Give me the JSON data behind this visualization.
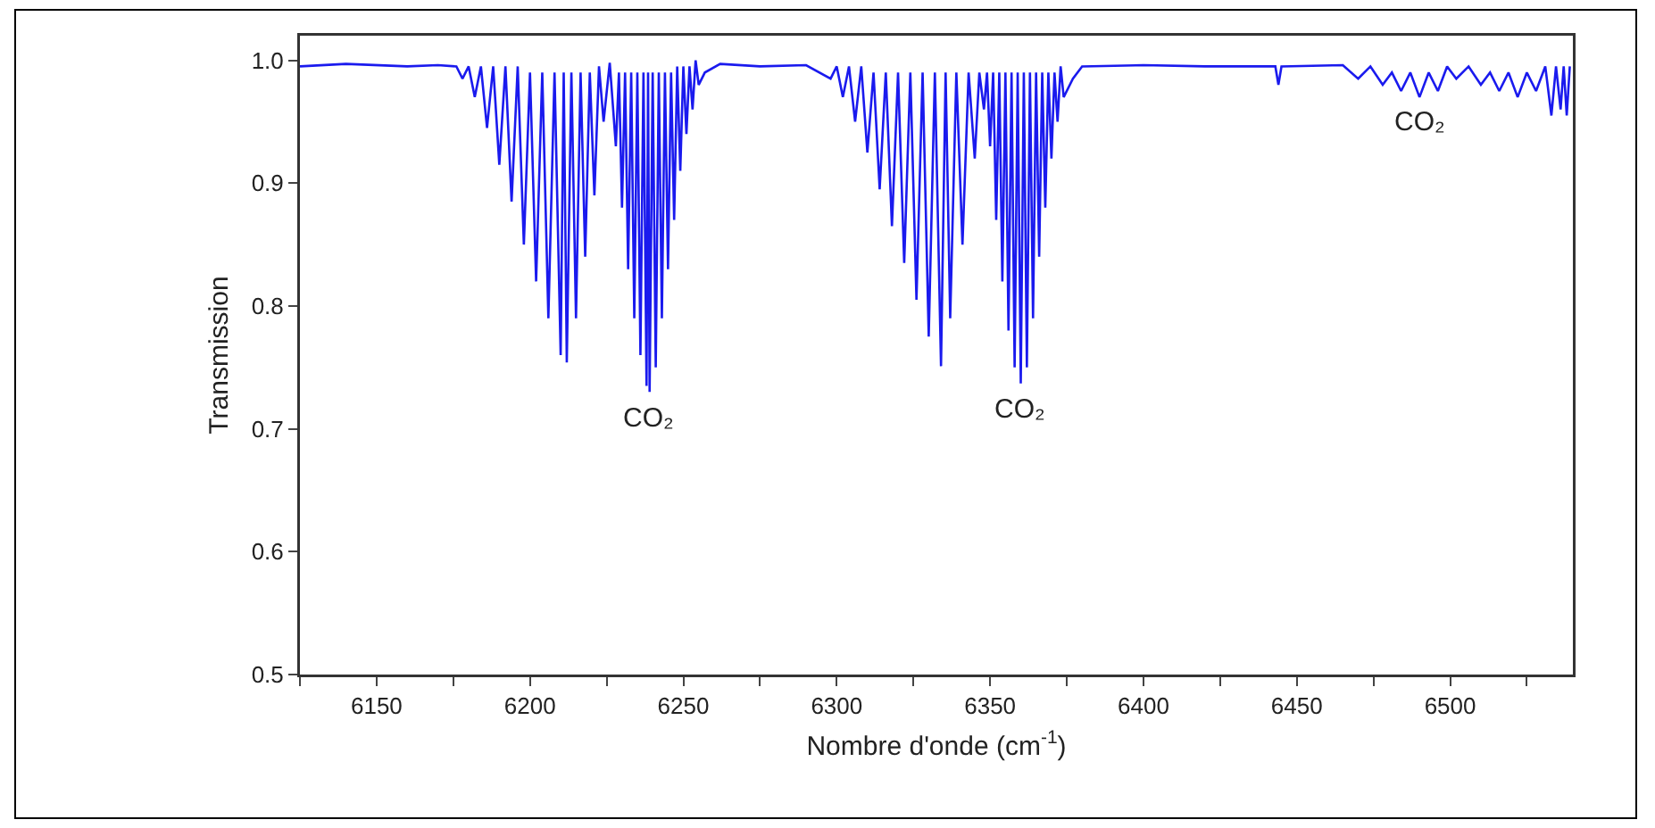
{
  "chart_data": {
    "type": "line",
    "xlabel": "Nombre d'onde (cm$^{-1}$)",
    "ylabel": "Transmission",
    "xlim": [
      6125,
      6540
    ],
    "ylim": [
      0.5,
      1.02
    ],
    "xticks": [
      {
        "value": 6125,
        "label": null
      },
      6150,
      {
        "value": 6175,
        "label": null
      },
      6200,
      {
        "value": 6225,
        "label": null
      },
      6250,
      {
        "value": 6275,
        "label": null
      },
      6300,
      {
        "value": 6325,
        "label": null
      },
      6350,
      {
        "value": 6375,
        "label": null
      },
      6400,
      {
        "value": 6425,
        "label": null
      },
      6450,
      {
        "value": 6475,
        "label": null
      },
      6500,
      {
        "value": 6525,
        "label": null
      }
    ],
    "yticks": [
      0.5,
      0.6,
      0.7,
      0.8,
      0.9,
      {
        "value": 1,
        "label": "1.0"
      }
    ],
    "annotations": [
      {
        "text": "CO₂",
        "x": 6239,
        "y": 0.73
      },
      {
        "text": "CO₂",
        "x": 6360,
        "y": 0.737
      },
      {
        "text": "CO₂",
        "x": 6490,
        "y": 0.97
      }
    ],
    "series": [
      {
        "color": "#1a1aee",
        "x": [
          6125,
          6140,
          6160,
          6170,
          6176,
          6178,
          6180,
          6182,
          6184,
          6186,
          6188,
          6190,
          6192,
          6194,
          6196,
          6198,
          6200,
          6202,
          6204,
          6206,
          6208,
          6210,
          6211,
          6212,
          6213.5,
          6215,
          6216.5,
          6218,
          6219.5,
          6221,
          6222.5,
          6224,
          6226,
          6228,
          6229,
          6230,
          6231,
          6232,
          6233,
          6234,
          6235,
          6236,
          6237,
          6238,
          6238.5,
          6239,
          6240,
          6241,
          6242,
          6243,
          6244,
          6245,
          6246,
          6247,
          6248,
          6249,
          6250,
          6251,
          6252,
          6253,
          6254,
          6255,
          6257,
          6262,
          6275,
          6290,
          6298,
          6300,
          6302,
          6304,
          6306,
          6308,
          6310,
          6312,
          6314,
          6316,
          6318,
          6320,
          6322,
          6324,
          6326,
          6328,
          6330,
          6332,
          6334,
          6335.5,
          6337,
          6339,
          6341,
          6343,
          6345,
          6346.5,
          6348,
          6349,
          6350,
          6351,
          6352,
          6353,
          6354,
          6355,
          6356,
          6357,
          6358,
          6359,
          6360,
          6361,
          6362,
          6363,
          6364,
          6365,
          6366,
          6367,
          6368,
          6369,
          6370,
          6371,
          6372,
          6373,
          6374,
          6377,
          6380,
          6400,
          6420,
          6443,
          6444,
          6445,
          6465,
          6470,
          6474,
          6478,
          6481,
          6484,
          6487,
          6490,
          6493,
          6496,
          6499,
          6502,
          6506,
          6510,
          6513,
          6516,
          6519,
          6522,
          6525,
          6528,
          6531,
          6533,
          6534.5,
          6536,
          6537,
          6538,
          6539
        ],
        "values": [
          0.995,
          0.997,
          0.995,
          0.996,
          0.995,
          0.985,
          0.995,
          0.97,
          0.995,
          0.945,
          0.995,
          0.915,
          0.995,
          0.885,
          0.995,
          0.85,
          0.99,
          0.82,
          0.99,
          0.79,
          0.99,
          0.76,
          0.99,
          0.754,
          0.99,
          0.79,
          0.99,
          0.84,
          0.99,
          0.89,
          0.995,
          0.95,
          0.998,
          0.93,
          0.99,
          0.88,
          0.99,
          0.83,
          0.99,
          0.79,
          0.99,
          0.76,
          0.99,
          0.735,
          0.99,
          0.73,
          0.99,
          0.75,
          0.99,
          0.79,
          0.99,
          0.83,
          0.99,
          0.87,
          0.995,
          0.91,
          0.995,
          0.94,
          0.995,
          0.96,
          1.0,
          0.98,
          0.99,
          0.997,
          0.995,
          0.996,
          0.985,
          0.995,
          0.97,
          0.995,
          0.95,
          0.995,
          0.925,
          0.99,
          0.895,
          0.99,
          0.865,
          0.99,
          0.835,
          0.99,
          0.805,
          0.99,
          0.775,
          0.99,
          0.751,
          0.99,
          0.79,
          0.99,
          0.85,
          0.99,
          0.92,
          0.99,
          0.96,
          0.99,
          0.93,
          0.99,
          0.87,
          0.99,
          0.82,
          0.99,
          0.78,
          0.99,
          0.75,
          0.99,
          0.737,
          0.99,
          0.75,
          0.99,
          0.79,
          0.99,
          0.84,
          0.99,
          0.88,
          0.99,
          0.92,
          0.99,
          0.95,
          0.995,
          0.97,
          0.985,
          0.995,
          0.996,
          0.995,
          0.995,
          0.98,
          0.995,
          0.996,
          0.985,
          0.995,
          0.98,
          0.99,
          0.975,
          0.99,
          0.97,
          0.99,
          0.975,
          0.995,
          0.985,
          0.995,
          0.98,
          0.99,
          0.975,
          0.99,
          0.97,
          0.99,
          0.975,
          0.995,
          0.955,
          0.995,
          0.96,
          0.995,
          0.955,
          0.995
        ]
      }
    ]
  }
}
